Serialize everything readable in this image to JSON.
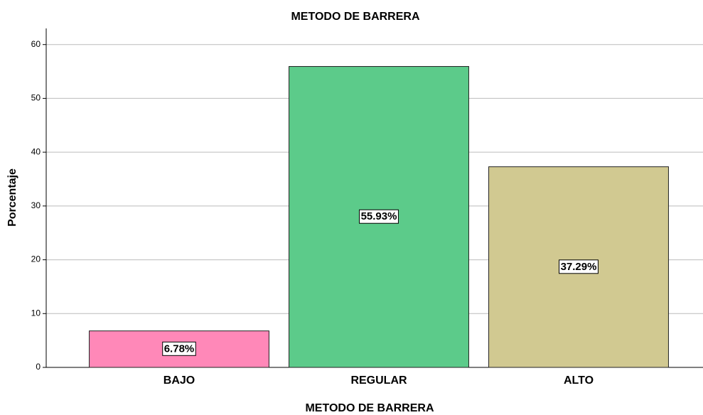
{
  "chart_data": {
    "type": "bar",
    "title": "METODO DE BARRERA",
    "x_label": "METODO DE BARRERA",
    "y_label": "Porcentaje",
    "categories": [
      "BAJO",
      "REGULAR",
      "ALTO"
    ],
    "values": [
      6.78,
      55.93,
      37.29
    ],
    "value_labels": [
      "6.78%",
      "55.93%",
      "37.29%"
    ],
    "colors": [
      "#ff88b8",
      "#5ccb8a",
      "#d1c991"
    ],
    "ylim": [
      0,
      63
    ],
    "yticks": [
      0,
      10,
      20,
      30,
      40,
      50,
      60
    ],
    "grid": true
  }
}
